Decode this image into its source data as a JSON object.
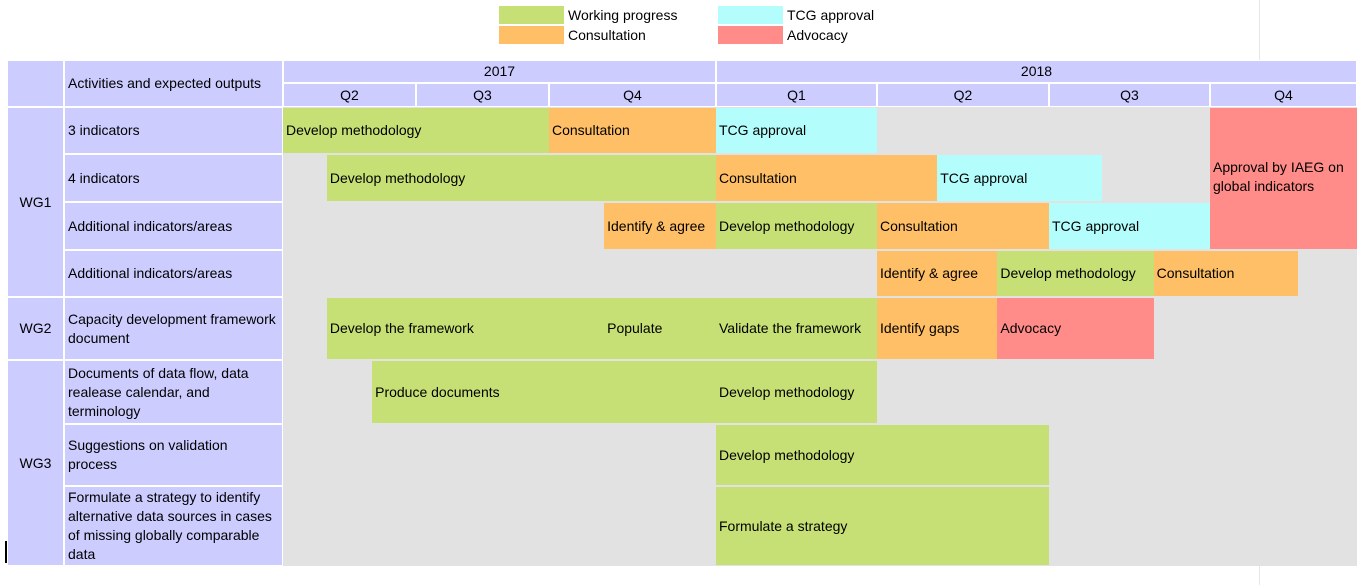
{
  "colors": {
    "header_bg": "#ccccff",
    "body_bg": "#e2e2e2",
    "working": "#c6e075",
    "consultation": "#ffbf66",
    "tcg": "#b3fdfd",
    "advocacy": "#ff8c88"
  },
  "chart_data": {
    "type": "table",
    "legend": {
      "placement": "top-center",
      "items": [
        {
          "key": "working",
          "label": "Working progress"
        },
        {
          "key": "tcg",
          "label": "TCG approval"
        },
        {
          "key": "consultation",
          "label": "Consultation"
        },
        {
          "key": "advocacy",
          "label": "Advocacy"
        }
      ]
    },
    "header": {
      "activities_label": "Activities and expected outputs",
      "years": [
        {
          "label": "2017",
          "start": 0,
          "end": 3
        },
        {
          "label": "2018",
          "start": 3,
          "end": 7
        }
      ],
      "quarters": [
        "Q2",
        "Q3",
        "Q4",
        "Q1",
        "Q2",
        "Q3",
        "Q4"
      ]
    },
    "groups": [
      {
        "label": "WG1",
        "rows": [
          0,
          1,
          2,
          3
        ]
      },
      {
        "label": "WG2",
        "rows": [
          4
        ]
      },
      {
        "label": "WG3",
        "rows": [
          5,
          6,
          7
        ]
      }
    ],
    "rows": [
      {
        "label": "3 indicators"
      },
      {
        "label": "4 indicators"
      },
      {
        "label": "Additional indicators/areas"
      },
      {
        "label": "Additional indicators/areas"
      },
      {
        "label": "Capacity development framework document"
      },
      {
        "label": "Documents of data flow, data realease calendar, and terminology"
      },
      {
        "label": "Suggestions on validation process"
      },
      {
        "label": "Formulate a strategy to identify alternative data sources in cases of missing globally comparable data"
      }
    ],
    "bars": [
      {
        "row": 0,
        "row_end": 0,
        "start": 0,
        "end": 2,
        "kind": "working",
        "label": "Develop methodology"
      },
      {
        "row": 0,
        "row_end": 0,
        "start": 2,
        "end": 3,
        "kind": "consultation",
        "label": "Consultation"
      },
      {
        "row": 0,
        "row_end": 0,
        "start": 3,
        "end": 4,
        "kind": "tcg",
        "label": "TCG approval"
      },
      {
        "row": 0,
        "row_end": 2,
        "start": 6,
        "end": 7,
        "kind": "advocacy",
        "label": "Approval by IAEG on global indicators"
      },
      {
        "row": 1,
        "row_end": 1,
        "start": 0.33,
        "end": 3,
        "kind": "working",
        "label": "Develop methodology"
      },
      {
        "row": 1,
        "row_end": 1,
        "start": 3,
        "end": 4.35,
        "kind": "consultation",
        "label": "Consultation"
      },
      {
        "row": 1,
        "row_end": 1,
        "start": 4.35,
        "end": 5.33,
        "kind": "tcg",
        "label": "TCG approval"
      },
      {
        "row": 2,
        "row_end": 2,
        "start": 2.33,
        "end": 3,
        "kind": "consultation",
        "label": "Identify & agree"
      },
      {
        "row": 2,
        "row_end": 2,
        "start": 3,
        "end": 4,
        "kind": "working",
        "label": "Develop methodology"
      },
      {
        "row": 2,
        "row_end": 2,
        "start": 4,
        "end": 5,
        "kind": "consultation",
        "label": "Consultation"
      },
      {
        "row": 2,
        "row_end": 2,
        "start": 5,
        "end": 6,
        "kind": "tcg",
        "label": "TCG approval"
      },
      {
        "row": 3,
        "row_end": 3,
        "start": 4,
        "end": 4.7,
        "kind": "consultation",
        "label": "Identify & agree"
      },
      {
        "row": 3,
        "row_end": 3,
        "start": 4.7,
        "end": 5.65,
        "kind": "working",
        "label": "Develop methodology"
      },
      {
        "row": 3,
        "row_end": 3,
        "start": 5.65,
        "end": 6.6,
        "kind": "consultation",
        "label": "Consultation"
      },
      {
        "row": 4,
        "row_end": 4,
        "start": 0.33,
        "end": 2.33,
        "kind": "working",
        "label": "Develop the framework"
      },
      {
        "row": 4,
        "row_end": 4,
        "start": 2.33,
        "end": 3,
        "kind": "working",
        "label": "Populate"
      },
      {
        "row": 4,
        "row_end": 4,
        "start": 3,
        "end": 4,
        "kind": "working",
        "label": "Validate the framework"
      },
      {
        "row": 4,
        "row_end": 4,
        "start": 4,
        "end": 4.7,
        "kind": "consultation",
        "label": "Identify gaps"
      },
      {
        "row": 4,
        "row_end": 4,
        "start": 4.7,
        "end": 5.65,
        "kind": "advocacy",
        "label": "Advocacy"
      },
      {
        "row": 5,
        "row_end": 5,
        "start": 0.67,
        "end": 3,
        "kind": "working",
        "label": "Produce documents"
      },
      {
        "row": 5,
        "row_end": 5,
        "start": 3,
        "end": 4,
        "kind": "working",
        "label": "Develop methodology"
      },
      {
        "row": 6,
        "row_end": 6,
        "start": 3,
        "end": 5,
        "kind": "working",
        "label": "Develop methodology"
      },
      {
        "row": 7,
        "row_end": 7,
        "start": 3,
        "end": 5,
        "kind": "working",
        "label": "Formulate a strategy"
      }
    ]
  }
}
